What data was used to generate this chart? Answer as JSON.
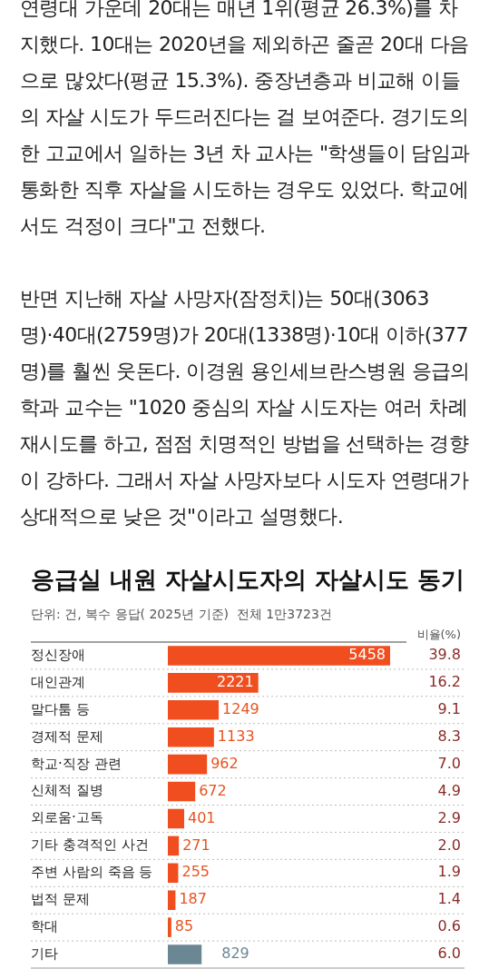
{
  "chart_data": {
    "type": "bar",
    "orientation": "horizontal",
    "title": "응급실 내원 자살시도자의 자살시도 동기",
    "subtitle": "단위: 건, 복수 응답( 2025년 기준)  전체 1만3723건",
    "y2label": "비율(%)",
    "categories": [
      "정신장애",
      "대인관계",
      "말다툼 등",
      "경제적 문제",
      "학교·직장 관련",
      "신체적 질병",
      "외로움·고독",
      "기타 충격적인 사건",
      "주변 사람의 죽음 등",
      "법적 문제",
      "학대",
      "기타"
    ],
    "values": [
      5458,
      2221,
      1249,
      1133,
      962,
      672,
      401,
      271,
      255,
      187,
      85,
      829
    ],
    "colors": [
      "#f04e1e",
      "#f04e1e",
      "#f04e1e",
      "#f04e1e",
      "#f04e1e",
      "#f04e1e",
      "#f04e1e",
      "#f04e1e",
      "#f04e1e",
      "#f04e1e",
      "#f04e1e",
      "#6b8794"
    ],
    "data_labels": true,
    "grid": "y",
    "legend": false,
    "annotations": [
      "연령대 가운데 20대는 매년 1위(평균 26.3%)를 차지했다. 10대는 2020년을 제외하곤 줄곧 20대 다음으로 많았다(평균 15.3%). 중장년층과 비교해 이들의 자살 시도가 두드러진다는 걸 보여준다. 경기도의 한 고교에서 일하는 3년 차 교사는 \"학생들이 담임과 통화한 직후 자살을 시도하는 경우도 있었다. 학교에서도 걱정이 크다\"고 전했다.",
      "반면 지난해 자살 사망자(잠정치)는 50대(3063명)·40대(2759명)가 20대(1338명)·10대 이하(377명)를 훨씬 웃돈다. 이경원 용인세브란스병원 응급의학과 교수는 \"1020 중심의 자살 시도자는 여러 차례 재시도를 하고, 점점 치명적인 방법을 선택하는 경향이 강하다. 그래서 자살 사망자보다 시도자 연령대가 상대적으로 낮은 것\"이라고 설명했다.",
      "39.8",
      "16.2",
      "9.1",
      "8.3",
      "7.0",
      "4.9",
      "2.9",
      "2.0",
      "1.9",
      "1.4",
      "0.6",
      "6.0"
    ]
  }
}
